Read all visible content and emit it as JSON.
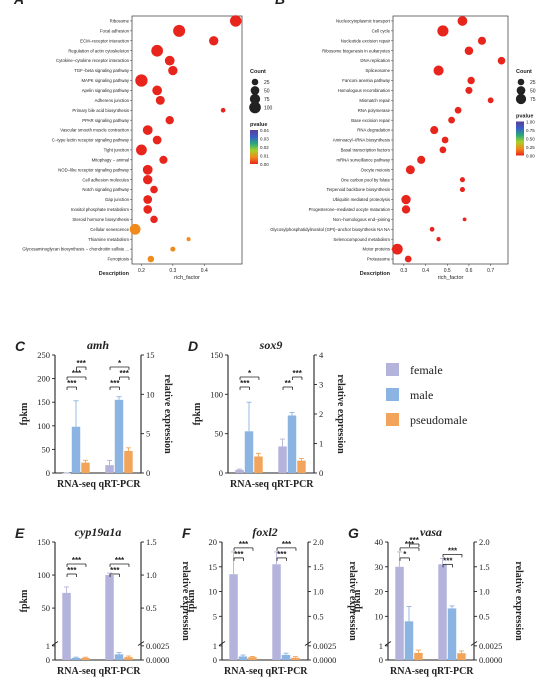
{
  "panels": {
    "A": {
      "letter": "A",
      "xlabel": "rich_factor",
      "ylabel": "Description",
      "xlim": [
        0.17,
        0.52
      ],
      "xticks": [
        0.2,
        0.3,
        0.4
      ],
      "terms": [
        {
          "name": "Ribosome",
          "x": 0.5,
          "count": 80,
          "p": 0.0
        },
        {
          "name": "Focal adhesion",
          "x": 0.32,
          "count": 90,
          "p": 0.0
        },
        {
          "name": "ECM−receptor interaction",
          "x": 0.43,
          "count": 50,
          "p": 0.0
        },
        {
          "name": "Regulation of actin cytoskeleton",
          "x": 0.25,
          "count": 85,
          "p": 0.0
        },
        {
          "name": "Cytokine−cytokine receptor interaction",
          "x": 0.29,
          "count": 55,
          "p": 0.0
        },
        {
          "name": "TGF−beta signaling pathway",
          "x": 0.3,
          "count": 50,
          "p": 0.0
        },
        {
          "name": "MAPK signaling pathway",
          "x": 0.2,
          "count": 95,
          "p": 0.0
        },
        {
          "name": "Apelin signaling pathway",
          "x": 0.25,
          "count": 55,
          "p": 0.0
        },
        {
          "name": "Adherens junction",
          "x": 0.26,
          "count": 45,
          "p": 0.0
        },
        {
          "name": "Primary bile acid biosynthesis",
          "x": 0.46,
          "count": 8,
          "p": 0.0
        },
        {
          "name": "PPAR signaling pathway",
          "x": 0.29,
          "count": 38,
          "p": 0.0
        },
        {
          "name": "Vascular smooth muscle contraction",
          "x": 0.22,
          "count": 55,
          "p": 0.0
        },
        {
          "name": "C−type lectin receptor signaling pathway",
          "x": 0.25,
          "count": 42,
          "p": 0.0
        },
        {
          "name": "Tight junction",
          "x": 0.2,
          "count": 70,
          "p": 0.0
        },
        {
          "name": "Mitophagy − animal",
          "x": 0.27,
          "count": 35,
          "p": 0.0
        },
        {
          "name": "NOD−like receptor signaling pathway",
          "x": 0.22,
          "count": 55,
          "p": 0.0
        },
        {
          "name": "Cell adhesion molecules",
          "x": 0.22,
          "count": 50,
          "p": 0.0
        },
        {
          "name": "Notch signaling pathway",
          "x": 0.24,
          "count": 30,
          "p": 0.0
        },
        {
          "name": "Gap junction",
          "x": 0.22,
          "count": 42,
          "p": 0.0
        },
        {
          "name": "Inositol phosphate metabolism",
          "x": 0.22,
          "count": 40,
          "p": 0.0
        },
        {
          "name": "Steroid hormone biosynthesis",
          "x": 0.24,
          "count": 28,
          "p": 0.0
        },
        {
          "name": "Cellular senescence",
          "x": 0.18,
          "count": 70,
          "p": 0.01
        },
        {
          "name": "Thiamine metabolism",
          "x": 0.35,
          "count": 5,
          "p": 0.01
        },
        {
          "name": "Glycosaminoglycan biosynthesis − chondroitin sulfate ...",
          "x": 0.3,
          "count": 10,
          "p": 0.01
        },
        {
          "name": "Ferroptosis",
          "x": 0.23,
          "count": 20,
          "p": 0.01
        }
      ],
      "size_legend_title": "Count",
      "size_legend": [
        25,
        50,
        75,
        100
      ],
      "color_legend_title": "pvalue",
      "color_ticks": [
        "0.00",
        "0.01",
        "0.02",
        "0.03",
        "0.04"
      ]
    },
    "B": {
      "letter": "B",
      "xlabel": "rich_factor",
      "ylabel": "Description",
      "xlim": [
        0.25,
        0.78
      ],
      "xticks": [
        0.3,
        0.4,
        0.5,
        0.6,
        0.7
      ],
      "terms": [
        {
          "name": "Nucleocytoplasmic transport",
          "x": 0.57,
          "count": 55,
          "p": 0.0
        },
        {
          "name": "Cell cycle",
          "x": 0.48,
          "count": 75,
          "p": 0.0
        },
        {
          "name": "Nucleotide excision repair",
          "x": 0.66,
          "count": 35,
          "p": 0.0
        },
        {
          "name": "Ribosome biogenesis in eukaryotes",
          "x": 0.6,
          "count": 40,
          "p": 0.0
        },
        {
          "name": "DNA replication",
          "x": 0.75,
          "count": 30,
          "p": 0.0
        },
        {
          "name": "Spliceosome",
          "x": 0.46,
          "count": 60,
          "p": 0.0
        },
        {
          "name": "Fanconi anemia pathway",
          "x": 0.61,
          "count": 28,
          "p": 0.0
        },
        {
          "name": "Homologous recombination",
          "x": 0.6,
          "count": 25,
          "p": 0.0
        },
        {
          "name": "Mismatch repair",
          "x": 0.7,
          "count": 15,
          "p": 0.0
        },
        {
          "name": "RNA polymerase",
          "x": 0.55,
          "count": 22,
          "p": 0.0
        },
        {
          "name": "Base excision repair",
          "x": 0.52,
          "count": 22,
          "p": 0.0
        },
        {
          "name": "RNA degradation",
          "x": 0.44,
          "count": 35,
          "p": 0.0
        },
        {
          "name": "Aminoacyl−tRNA biosynthesis",
          "x": 0.49,
          "count": 22,
          "p": 0.0
        },
        {
          "name": "Basal transcription factors",
          "x": 0.48,
          "count": 22,
          "p": 0.0
        },
        {
          "name": "mRNA surveillance pathway",
          "x": 0.38,
          "count": 35,
          "p": 0.0
        },
        {
          "name": "Oocyte meiosis",
          "x": 0.33,
          "count": 45,
          "p": 0.0
        },
        {
          "name": "One carbon pool by folate",
          "x": 0.57,
          "count": 10,
          "p": 0.0
        },
        {
          "name": "Terpenoid backbone biosynthesis",
          "x": 0.57,
          "count": 10,
          "p": 0.0
        },
        {
          "name": "Ubiquitin mediated proteolysis",
          "x": 0.31,
          "count": 50,
          "p": 0.0
        },
        {
          "name": "Progesterone−mediated oocyte maturation",
          "x": 0.31,
          "count": 38,
          "p": 0.0
        },
        {
          "name": "Non−homologous end−joining",
          "x": 0.58,
          "count": 4,
          "p": 0.0
        },
        {
          "name": "Glycosylphosphatidylinositol (GPI)−anchor biosynthesis NA NA",
          "x": 0.43,
          "count": 8,
          "p": 0.0
        },
        {
          "name": "Selenocompound metabolism",
          "x": 0.46,
          "count": 6,
          "p": 0.0
        },
        {
          "name": "Motor proteins",
          "x": 0.27,
          "count": 70,
          "p": 0.0
        },
        {
          "name": "Proteasome",
          "x": 0.32,
          "count": 22,
          "p": 0.0
        }
      ],
      "size_legend_title": "Count",
      "size_legend": [
        25,
        50,
        75
      ],
      "color_legend_title": "pvalue",
      "color_ticks": [
        "1.00",
        "0.75",
        "0.50",
        "0.25",
        "0.00"
      ]
    }
  },
  "legend": {
    "items": [
      {
        "label": "female",
        "color": "#b3b3dc"
      },
      {
        "label": "male",
        "color": "#8cb4e2"
      },
      {
        "label": "pseudomale",
        "color": "#f2a55a"
      }
    ]
  },
  "chart_data": [
    {
      "type": "bar",
      "panel": "C",
      "title": "amh",
      "categories": [
        "RNA-seq",
        "qRT-PCR"
      ],
      "ylabel": "fpkm",
      "y2label": "relative expression",
      "ylim": [
        0,
        250
      ],
      "yticks": [
        0,
        50,
        100,
        150,
        200,
        250
      ],
      "y2lim": [
        0,
        15
      ],
      "y2ticks": [
        0,
        5,
        10,
        15
      ],
      "series": [
        {
          "name": "female",
          "values": [
            0,
            1.0
          ],
          "errors": [
            0,
            0.6
          ]
        },
        {
          "name": "male",
          "values": [
            98,
            9.3
          ],
          "errors": [
            55,
            0.4
          ]
        },
        {
          "name": "pseudomale",
          "values": [
            22,
            2.8
          ],
          "errors": [
            5,
            0.4
          ]
        }
      ],
      "sig": [
        {
          "group": 0,
          "from": 0,
          "to": 1,
          "label": "***",
          "level": 0
        },
        {
          "group": 0,
          "from": 0,
          "to": 2,
          "label": "***",
          "level": 1
        },
        {
          "group": 0,
          "from": 1,
          "to": 2,
          "label": "***",
          "level": 2
        },
        {
          "group": 1,
          "from": 0,
          "to": 1,
          "label": "***",
          "level": 0
        },
        {
          "group": 1,
          "from": 1,
          "to": 2,
          "label": "***",
          "level": 1
        },
        {
          "group": 1,
          "from": 0,
          "to": 2,
          "label": "*",
          "level": 2
        }
      ]
    },
    {
      "type": "bar",
      "panel": "D",
      "title": "sox9",
      "categories": [
        "RNA-seq",
        "qRT-PCR"
      ],
      "ylabel": "fpkm",
      "y2label": "relative expression",
      "ylim": [
        0,
        150
      ],
      "yticks": [
        0,
        50,
        100,
        150
      ],
      "y2lim": [
        0,
        4
      ],
      "y2ticks": [
        0,
        1,
        2,
        3,
        4
      ],
      "series": [
        {
          "name": "female",
          "values": [
            4,
            0.9
          ],
          "errors": [
            1,
            0.25
          ]
        },
        {
          "name": "male",
          "values": [
            53,
            1.95
          ],
          "errors": [
            37,
            0.1
          ]
        },
        {
          "name": "pseudomale",
          "values": [
            21,
            0.42
          ],
          "errors": [
            4,
            0.07
          ]
        }
      ],
      "sig": [
        {
          "group": 0,
          "from": 0,
          "to": 1,
          "label": "***",
          "level": 0
        },
        {
          "group": 0,
          "from": 0,
          "to": 2,
          "label": "*",
          "level": 1
        },
        {
          "group": 1,
          "from": 0,
          "to": 1,
          "label": "**",
          "level": 0
        },
        {
          "group": 1,
          "from": 1,
          "to": 2,
          "label": "***",
          "level": 1
        }
      ]
    },
    {
      "type": "bar",
      "panel": "E",
      "title": "cyp19a1a",
      "categories": [
        "RNA-seq",
        "qRT-PCR"
      ],
      "ylabel": "fpkm",
      "y2label": "relative expression",
      "ylim": [
        0,
        150
      ],
      "yticks": [
        0,
        1,
        50,
        100,
        150
      ],
      "y2lim": [
        0,
        1.5
      ],
      "y2ticks": [
        "0.0000",
        "0.0025",
        "0.5",
        "1.0",
        "1.5"
      ],
      "series": [
        {
          "name": "female",
          "values": [
            73,
            1.0
          ],
          "errors": [
            9,
            0.03
          ]
        },
        {
          "name": "male",
          "values": [
            0.15,
            0.001
          ],
          "errors": [
            0.05,
            0.0003
          ]
        },
        {
          "name": "pseudomale",
          "values": [
            0.15,
            0.0005
          ],
          "errors": [
            0.05,
            0.0002
          ]
        }
      ],
      "sig": [
        {
          "group": 0,
          "from": 0,
          "to": 1,
          "label": "***",
          "level": 0
        },
        {
          "group": 0,
          "from": 0,
          "to": 2,
          "label": "***",
          "level": 1
        },
        {
          "group": 1,
          "from": 0,
          "to": 1,
          "label": "***",
          "level": 0
        },
        {
          "group": 1,
          "from": 0,
          "to": 2,
          "label": "***",
          "level": 1
        }
      ]
    },
    {
      "type": "bar",
      "panel": "F",
      "title": "foxl2",
      "categories": [
        "RNA-seq",
        "qRT-PCR"
      ],
      "ylabel": "fpkm",
      "y2label": "relative expression",
      "ylim": [
        0,
        20
      ],
      "yticks": [
        0,
        1,
        5,
        10,
        15,
        20
      ],
      "y2lim": [
        0,
        2.0
      ],
      "y2ticks": [
        "0.0000",
        "0.0025",
        "0.5",
        "1.0",
        "1.5",
        "2.0"
      ],
      "series": [
        {
          "name": "female",
          "values": [
            13.5,
            1.55
          ],
          "errors": [
            4.5,
            0.25
          ]
        },
        {
          "name": "male",
          "values": [
            0.25,
            0.0009
          ],
          "errors": [
            0.1,
            0.0003
          ]
        },
        {
          "name": "pseudomale",
          "values": [
            0.2,
            0.0004
          ],
          "errors": [
            0.05,
            0.0002
          ]
        }
      ],
      "sig": [
        {
          "group": 0,
          "from": 0,
          "to": 1,
          "label": "***",
          "level": 0
        },
        {
          "group": 0,
          "from": 0,
          "to": 2,
          "label": "***",
          "level": 1
        },
        {
          "group": 1,
          "from": 0,
          "to": 1,
          "label": "***",
          "level": 0
        },
        {
          "group": 1,
          "from": 0,
          "to": 2,
          "label": "***",
          "level": 1
        }
      ]
    },
    {
      "type": "bar",
      "panel": "G",
      "title": "vasa",
      "categories": [
        "RNA-seq",
        "qRT-PCR"
      ],
      "ylabel": "fpkm",
      "y2label": "relative expression",
      "ylim": [
        0,
        40
      ],
      "yticks": [
        0,
        1,
        10,
        20,
        30,
        40
      ],
      "y2lim": [
        0,
        2.0
      ],
      "y2ticks": [
        "0.0000",
        "0.0025",
        "0.5",
        "1.0",
        "1.5",
        "2.0"
      ],
      "series": [
        {
          "name": "female",
          "values": [
            30,
            1.55
          ],
          "errors": [
            6,
            0.12
          ]
        },
        {
          "name": "male",
          "values": [
            8,
            0.66
          ],
          "errors": [
            6,
            0.05
          ]
        },
        {
          "name": "pseudomale",
          "values": [
            0.5,
            0.0012
          ],
          "errors": [
            0.2,
            0.0004
          ]
        }
      ],
      "sig": [
        {
          "group": 0,
          "from": 0,
          "to": 1,
          "label": "*",
          "level": 0
        },
        {
          "group": 0,
          "from": 0,
          "to": 2,
          "label": "***",
          "level": 1
        },
        {
          "group": 0,
          "from": 1,
          "to": 2,
          "label": "***",
          "level": 2
        },
        {
          "group": 1,
          "from": 0,
          "to": 1,
          "label": "***",
          "level": 0
        },
        {
          "group": 1,
          "from": 0,
          "to": 2,
          "label": "***",
          "level": 1
        }
      ]
    }
  ]
}
